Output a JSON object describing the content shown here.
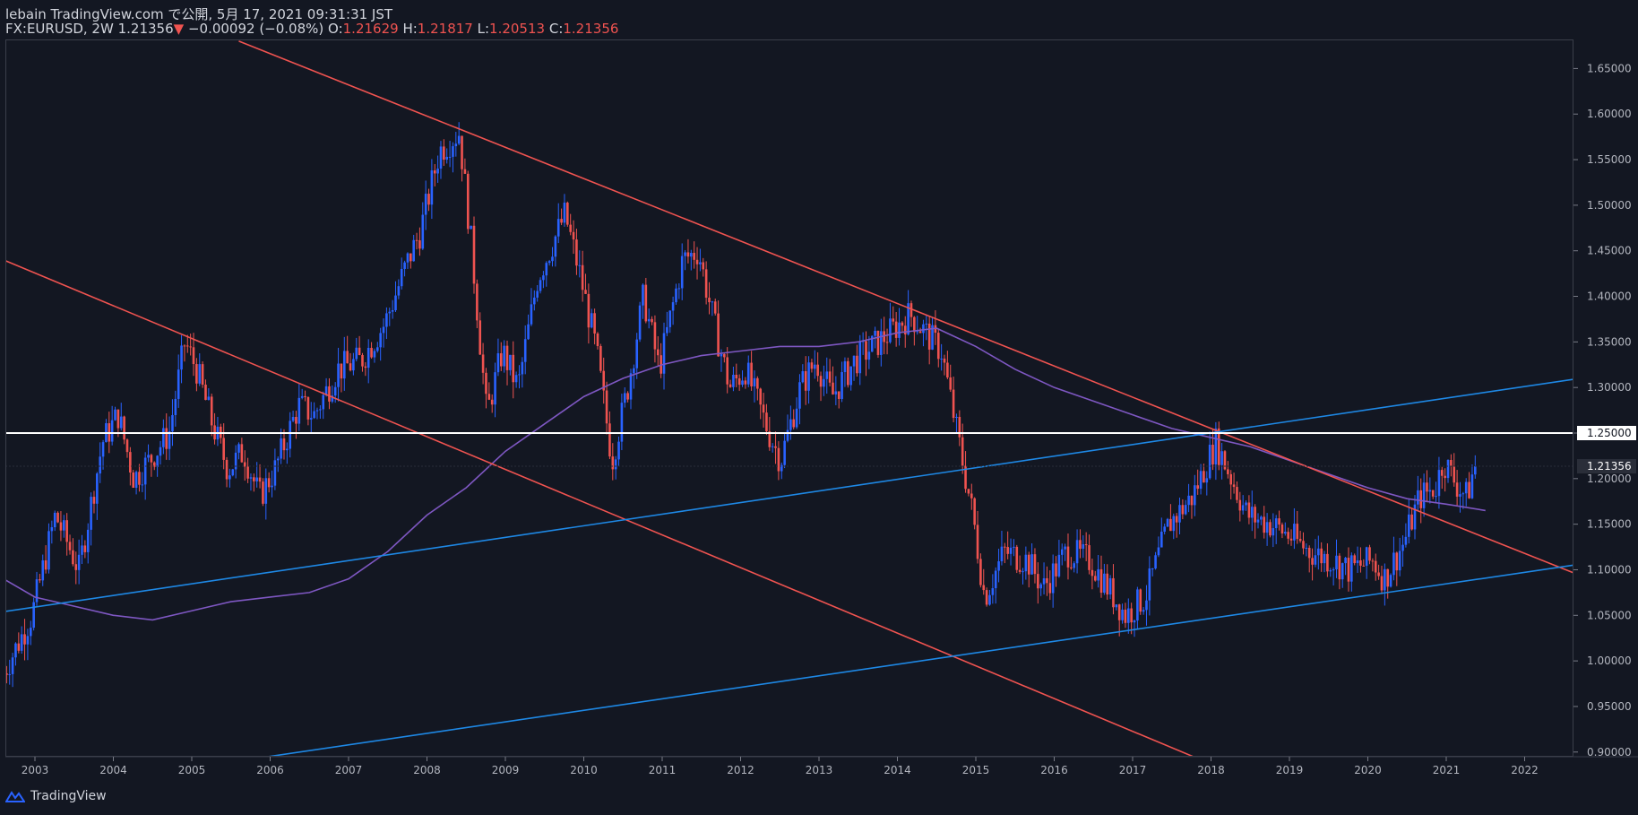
{
  "header": {
    "line1": "lebain TradingView.com で公開, 5月 17, 2021 09:31:31 JST",
    "symbol": "FX:EURUSD, 2W",
    "last": "1.21356",
    "change_arrow": "▼",
    "change": "−0.00092 (−0.08%)",
    "o_label": "O:",
    "o": "1.21629",
    "h_label": "H:",
    "h": "1.21817",
    "l_label": "L:",
    "l": "1.20513",
    "c_label": "C:",
    "c": "1.21356"
  },
  "footer": {
    "brand": "TradingView"
  },
  "colors": {
    "background": "#131722",
    "up": "#2962ff",
    "down": "#ef5350",
    "ma": "#7e57c2",
    "trend_red": "#ef5350",
    "trend_blue": "#1e88e5",
    "level": "#ffffff"
  },
  "chart_data": {
    "type": "candlestick",
    "symbol": "FX:EURUSD",
    "interval": "2W",
    "xlim": [
      2002.6,
      2022.7
    ],
    "ylim": [
      0.9,
      1.68
    ],
    "x_ticks": [
      2003,
      2004,
      2005,
      2006,
      2007,
      2008,
      2009,
      2010,
      2011,
      2012,
      2013,
      2014,
      2015,
      2016,
      2017,
      2018,
      2019,
      2020,
      2021,
      2022
    ],
    "y_ticks": [
      "0.90000",
      "0.95000",
      "1.00000",
      "1.05000",
      "1.10000",
      "1.15000",
      "1.20000",
      "1.25000",
      "1.30000",
      "1.35000",
      "1.40000",
      "1.45000",
      "1.50000",
      "1.55000",
      "1.60000",
      "1.65000"
    ],
    "last_price_label": "1.21356",
    "last_price": 1.21356,
    "horizontal_level": {
      "label": "1.25000",
      "value": 1.25
    },
    "price_path": [
      [
        2002.6,
        0.98
      ],
      [
        2003.0,
        1.05
      ],
      [
        2003.3,
        1.16
      ],
      [
        2003.6,
        1.1
      ],
      [
        2003.9,
        1.24
      ],
      [
        2004.1,
        1.27
      ],
      [
        2004.3,
        1.2
      ],
      [
        2004.5,
        1.22
      ],
      [
        2004.75,
        1.25
      ],
      [
        2004.95,
        1.35
      ],
      [
        2005.1,
        1.32
      ],
      [
        2005.3,
        1.26
      ],
      [
        2005.5,
        1.21
      ],
      [
        2005.7,
        1.23
      ],
      [
        2005.9,
        1.18
      ],
      [
        2006.1,
        1.21
      ],
      [
        2006.4,
        1.28
      ],
      [
        2006.6,
        1.27
      ],
      [
        2006.9,
        1.32
      ],
      [
        2007.2,
        1.33
      ],
      [
        2007.5,
        1.37
      ],
      [
        2007.8,
        1.44
      ],
      [
        2007.95,
        1.47
      ],
      [
        2008.2,
        1.56
      ],
      [
        2008.45,
        1.58
      ],
      [
        2008.6,
        1.46
      ],
      [
        2008.8,
        1.27
      ],
      [
        2009.0,
        1.34
      ],
      [
        2009.2,
        1.3
      ],
      [
        2009.45,
        1.42
      ],
      [
        2009.8,
        1.49
      ],
      [
        2010.0,
        1.42
      ],
      [
        2010.2,
        1.34
      ],
      [
        2010.4,
        1.22
      ],
      [
        2010.6,
        1.3
      ],
      [
        2010.8,
        1.4
      ],
      [
        2011.0,
        1.32
      ],
      [
        2011.3,
        1.44
      ],
      [
        2011.5,
        1.45
      ],
      [
        2011.7,
        1.37
      ],
      [
        2011.9,
        1.3
      ],
      [
        2012.1,
        1.32
      ],
      [
        2012.4,
        1.25
      ],
      [
        2012.55,
        1.22
      ],
      [
        2012.8,
        1.3
      ],
      [
        2013.0,
        1.33
      ],
      [
        2013.2,
        1.29
      ],
      [
        2013.5,
        1.33
      ],
      [
        2013.8,
        1.35
      ],
      [
        2014.2,
        1.38
      ],
      [
        2014.4,
        1.36
      ],
      [
        2014.6,
        1.34
      ],
      [
        2014.8,
        1.25
      ],
      [
        2015.0,
        1.16
      ],
      [
        2015.15,
        1.07
      ],
      [
        2015.4,
        1.12
      ],
      [
        2015.7,
        1.11
      ],
      [
        2015.9,
        1.08
      ],
      [
        2016.2,
        1.12
      ],
      [
        2016.5,
        1.11
      ],
      [
        2016.8,
        1.07
      ],
      [
        2016.95,
        1.05
      ],
      [
        2017.2,
        1.07
      ],
      [
        2017.5,
        1.15
      ],
      [
        2017.8,
        1.18
      ],
      [
        2018.1,
        1.24
      ],
      [
        2018.3,
        1.2
      ],
      [
        2018.5,
        1.16
      ],
      [
        2018.8,
        1.15
      ],
      [
        2019.0,
        1.14
      ],
      [
        2019.3,
        1.12
      ],
      [
        2019.6,
        1.11
      ],
      [
        2019.8,
        1.1
      ],
      [
        2020.1,
        1.11
      ],
      [
        2020.25,
        1.09
      ],
      [
        2020.5,
        1.13
      ],
      [
        2020.7,
        1.18
      ],
      [
        2020.9,
        1.19
      ],
      [
        2021.0,
        1.22
      ],
      [
        2021.2,
        1.19
      ],
      [
        2021.3,
        1.18
      ],
      [
        2021.4,
        1.21356
      ]
    ],
    "moving_average": [
      [
        2002.6,
        1.09
      ],
      [
        2003.0,
        1.07
      ],
      [
        2003.5,
        1.06
      ],
      [
        2004.0,
        1.05
      ],
      [
        2004.5,
        1.045
      ],
      [
        2005.0,
        1.055
      ],
      [
        2005.5,
        1.065
      ],
      [
        2006.0,
        1.07
      ],
      [
        2006.5,
        1.075
      ],
      [
        2007.0,
        1.09
      ],
      [
        2007.5,
        1.12
      ],
      [
        2008.0,
        1.16
      ],
      [
        2008.5,
        1.19
      ],
      [
        2009.0,
        1.23
      ],
      [
        2009.5,
        1.26
      ],
      [
        2010.0,
        1.29
      ],
      [
        2010.5,
        1.31
      ],
      [
        2011.0,
        1.325
      ],
      [
        2011.5,
        1.335
      ],
      [
        2012.0,
        1.34
      ],
      [
        2012.5,
        1.345
      ],
      [
        2013.0,
        1.345
      ],
      [
        2013.5,
        1.35
      ],
      [
        2014.0,
        1.36
      ],
      [
        2014.5,
        1.365
      ],
      [
        2015.0,
        1.345
      ],
      [
        2015.5,
        1.32
      ],
      [
        2016.0,
        1.3
      ],
      [
        2016.5,
        1.285
      ],
      [
        2017.0,
        1.27
      ],
      [
        2017.5,
        1.255
      ],
      [
        2018.0,
        1.245
      ],
      [
        2018.5,
        1.235
      ],
      [
        2019.0,
        1.22
      ],
      [
        2019.5,
        1.205
      ],
      [
        2020.0,
        1.19
      ],
      [
        2020.5,
        1.178
      ],
      [
        2021.0,
        1.172
      ],
      [
        2021.5,
        1.165
      ]
    ],
    "trendlines": [
      {
        "color": "red",
        "p1": [
          2002.6,
          1.44
        ],
        "p2": [
          2017.8,
          0.894
        ]
      },
      {
        "color": "red",
        "p1": [
          2005.6,
          1.68
        ],
        "p2": [
          2022.7,
          1.094
        ]
      },
      {
        "color": "blue",
        "p1": [
          2002.6,
          1.054
        ],
        "p2": [
          2022.7,
          1.31
        ]
      },
      {
        "color": "blue",
        "p1": [
          2005.9,
          0.894
        ],
        "p2": [
          2022.7,
          1.106
        ]
      }
    ]
  }
}
